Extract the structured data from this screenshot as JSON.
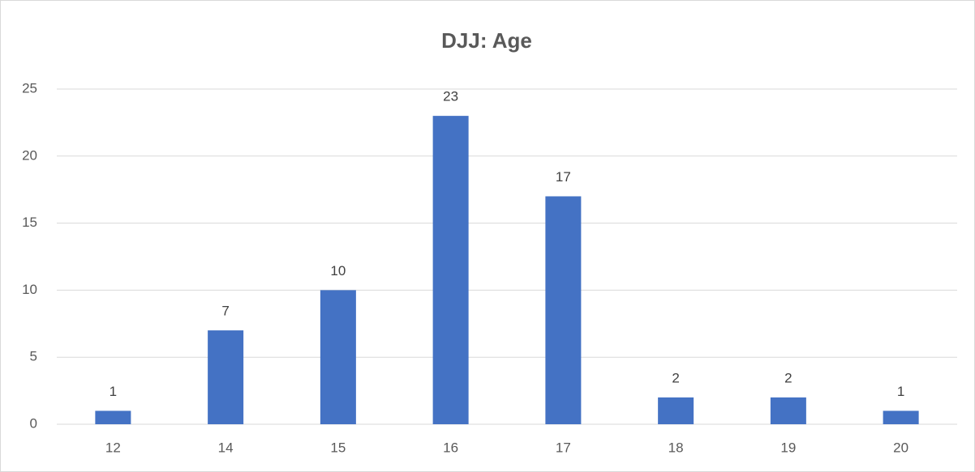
{
  "chart_data": {
    "type": "bar",
    "title": "DJJ: Age",
    "categories": [
      "12",
      "14",
      "15",
      "16",
      "17",
      "18",
      "19",
      "20"
    ],
    "values": [
      1,
      7,
      10,
      23,
      17,
      2,
      2,
      1
    ],
    "color": "#4472c4",
    "ylim": [
      0,
      25
    ],
    "yticks": [
      0,
      5,
      10,
      15,
      20,
      25
    ],
    "grid": true
  }
}
